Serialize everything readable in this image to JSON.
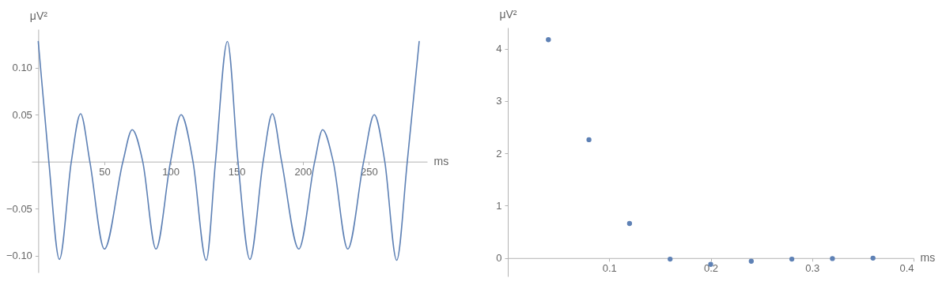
{
  "chart_data": [
    {
      "type": "line",
      "xlabel": "ms",
      "ylabel": "μV²",
      "xlim": [
        -5,
        294
      ],
      "ylim": [
        -0.118,
        0.141
      ],
      "xticks": [
        50,
        100,
        150,
        200,
        250
      ],
      "yticks": [
        {
          "value": -0.1,
          "label": "−0.10"
        },
        {
          "value": -0.05,
          "label": "−0.05"
        },
        {
          "value": 0.05,
          "label": "0.05"
        },
        {
          "value": 0.1,
          "label": "0.10"
        }
      ],
      "grid": false,
      "marker": "none",
      "line_style": "solid",
      "x": [
        0,
        8,
        16,
        25,
        32,
        39,
        50,
        64,
        71,
        79,
        89,
        100,
        108,
        117,
        127,
        134,
        143,
        151,
        160,
        170,
        177,
        184,
        197,
        209,
        215,
        223,
        234,
        246,
        254,
        262,
        271,
        279,
        288
      ],
      "series": [
        {
          "color": "#5e81b5",
          "values": [
            0.128,
            0,
            -0.104,
            0,
            0.051,
            0,
            -0.093,
            0,
            0.034,
            0,
            -0.093,
            0,
            0.05,
            0,
            -0.105,
            0,
            0.128,
            0,
            -0.104,
            0,
            0.051,
            0,
            -0.093,
            0,
            0.034,
            0,
            -0.093,
            0,
            0.05,
            0,
            -0.105,
            0,
            0.128
          ]
        }
      ]
    },
    {
      "type": "scatter",
      "xlabel": "ms",
      "ylabel": "μV²",
      "xlim": [
        0,
        0.4
      ],
      "ylim": [
        -0.35,
        4.4
      ],
      "xticks": [
        0.1,
        0.2,
        0.3,
        0.4
      ],
      "yticks": [
        0,
        1,
        2,
        3,
        4
      ],
      "grid": false,
      "marker": "circle",
      "x": [
        0.04,
        0.08,
        0.12,
        0.16,
        0.2,
        0.24,
        0.28,
        0.32,
        0.36
      ],
      "series": [
        {
          "color": "#5e81b5",
          "values": [
            4.17,
            2.26,
            0.66,
            -0.02,
            -0.12,
            -0.06,
            -0.02,
            -0.01,
            0.0
          ]
        }
      ]
    }
  ]
}
